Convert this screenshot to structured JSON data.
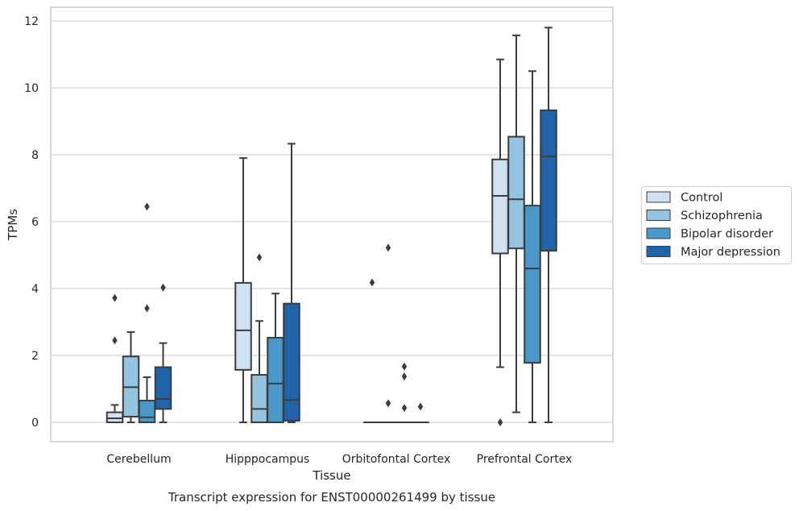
{
  "chart_data": {
    "type": "box",
    "title": "Transcript expression for ENST00000261499 by tissue",
    "xlabel": "Tissue",
    "ylabel": "TPMs",
    "ylim": [
      -0.58,
      12.38
    ],
    "yticks": [
      0,
      2,
      4,
      6,
      8,
      10,
      12
    ],
    "grid": "horizontal",
    "legend_position": "right",
    "categories": [
      "Cerebellum",
      "Hipppocampus",
      "Orbitofontal Cortex",
      "Prefrontal Cortex"
    ],
    "series": [
      {
        "name": "Control",
        "color": "#d0e1f2",
        "boxes": [
          {
            "whisker_low": 0,
            "q1": 0,
            "median": 0.12,
            "q3": 0.3,
            "whisker_high": 0.52,
            "outliers": [
              2.45,
              3.72
            ]
          },
          {
            "whisker_low": 0,
            "q1": 1.57,
            "median": 2.75,
            "q3": 4.17,
            "whisker_high": 7.9,
            "outliers": []
          },
          {
            "whisker_low": 0,
            "q1": 0,
            "median": 0,
            "q3": 0,
            "whisker_high": 0,
            "outliers": [
              4.18
            ]
          },
          {
            "whisker_low": 1.65,
            "q1": 5.05,
            "median": 6.77,
            "q3": 7.86,
            "whisker_high": 10.85,
            "outliers": [
              0
            ]
          }
        ]
      },
      {
        "name": "Schizophrenia",
        "color": "#94c4df",
        "boxes": [
          {
            "whisker_low": 0,
            "q1": 0.17,
            "median": 1.05,
            "q3": 1.97,
            "whisker_high": 2.7,
            "outliers": []
          },
          {
            "whisker_low": 0,
            "q1": 0,
            "median": 0.4,
            "q3": 1.42,
            "whisker_high": 3.03,
            "outliers": [
              4.93
            ]
          },
          {
            "whisker_low": 0,
            "q1": 0,
            "median": 0,
            "q3": 0,
            "whisker_high": 0,
            "outliers": [
              0.57,
              5.22
            ]
          },
          {
            "whisker_low": 0.3,
            "q1": 5.2,
            "median": 6.67,
            "q3": 8.54,
            "whisker_high": 11.57,
            "outliers": []
          }
        ]
      },
      {
        "name": "Bipolar disorder",
        "color": "#4a98c9",
        "boxes": [
          {
            "whisker_low": 0,
            "q1": 0,
            "median": 0.15,
            "q3": 0.65,
            "whisker_high": 1.35,
            "outliers": [
              3.41,
              6.45
            ]
          },
          {
            "whisker_low": 0,
            "q1": 0,
            "median": 1.16,
            "q3": 2.53,
            "whisker_high": 3.85,
            "outliers": []
          },
          {
            "whisker_low": 0,
            "q1": 0,
            "median": 0,
            "q3": 0,
            "whisker_high": 0,
            "outliers": [
              0.43,
              1.37,
              1.67
            ]
          },
          {
            "whisker_low": 0,
            "q1": 1.78,
            "median": 4.6,
            "q3": 6.48,
            "whisker_high": 10.5,
            "outliers": []
          }
        ]
      },
      {
        "name": "Major depression",
        "color": "#2163aa",
        "boxes": [
          {
            "whisker_low": 0,
            "q1": 0.4,
            "median": 0.7,
            "q3": 1.65,
            "whisker_high": 2.37,
            "outliers": [
              4.03
            ]
          },
          {
            "whisker_low": 0,
            "q1": 0.05,
            "median": 0.67,
            "q3": 3.55,
            "whisker_high": 8.33,
            "outliers": []
          },
          {
            "whisker_low": 0,
            "q1": 0,
            "median": 0,
            "q3": 0,
            "whisker_high": 0,
            "outliers": [
              0.47
            ]
          },
          {
            "whisker_low": 0,
            "q1": 5.13,
            "median": 7.95,
            "q3": 9.33,
            "whisker_high": 11.8,
            "outliers": []
          }
        ]
      }
    ]
  }
}
